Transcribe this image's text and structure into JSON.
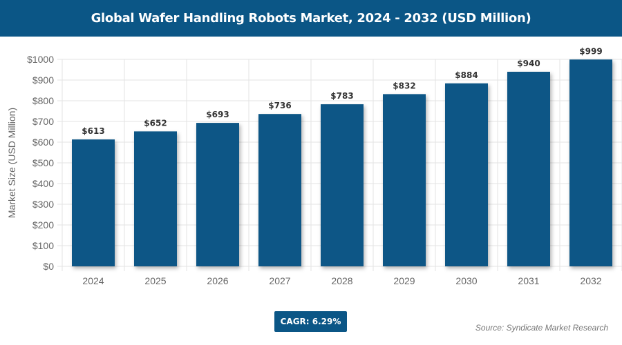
{
  "chart_data": {
    "type": "bar",
    "title": "Global Wafer Handling Robots Market, 2024 - 2032 (USD Million)",
    "xlabel": "",
    "ylabel": "Market Size (USD Million)",
    "categories": [
      "2024",
      "2025",
      "2026",
      "2027",
      "2028",
      "2029",
      "2030",
      "2031",
      "2032"
    ],
    "values": [
      613,
      652,
      693,
      736,
      783,
      832,
      884,
      940,
      999
    ],
    "data_labels": [
      "$613",
      "$652",
      "$693",
      "$736",
      "$783",
      "$832",
      "$884",
      "$940",
      "$999"
    ],
    "ylim": [
      0,
      1000
    ],
    "yticks": [
      "$0",
      "$100",
      "$200",
      "$300",
      "$400",
      "$500",
      "$600",
      "$700",
      "$800",
      "$900",
      "$1000"
    ],
    "grid": true,
    "bar_color": "#0b5686"
  },
  "cagr": "CAGR: 6.29%",
  "source": "Source: Syndicate Market Research"
}
